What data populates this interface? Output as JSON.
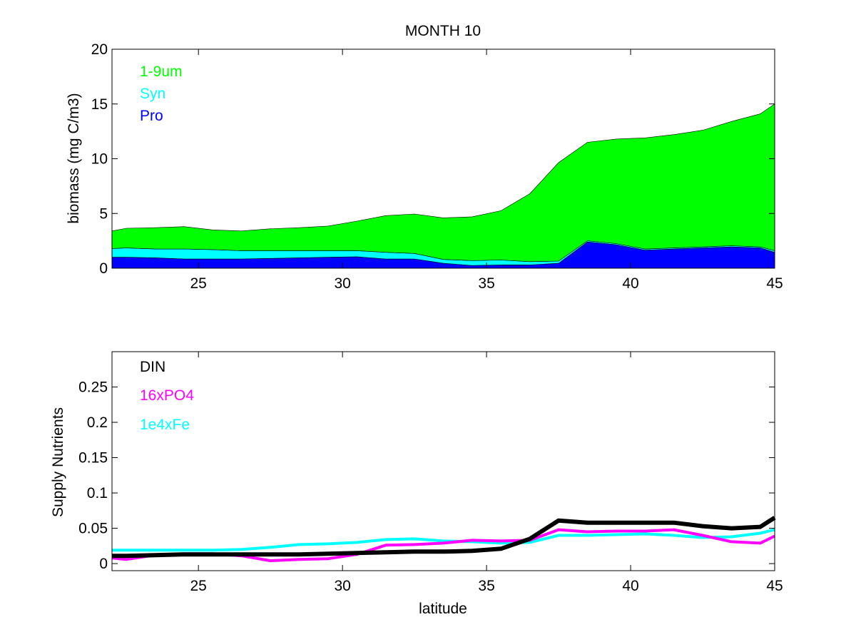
{
  "chart_data": [
    {
      "type": "area",
      "title": "MONTH 10",
      "xlabel": "",
      "ylabel": "biomass (mg C/m3)",
      "xlim": [
        22,
        45
      ],
      "ylim": [
        0,
        20
      ],
      "xticks": [
        25,
        30,
        35,
        40,
        45
      ],
      "yticks": [
        0,
        5,
        10,
        15,
        20
      ],
      "stacked": true,
      "legend_placement": "top-left",
      "x": [
        22,
        22.5,
        23.5,
        24.5,
        25.5,
        26.5,
        27.5,
        28.5,
        29.5,
        30.5,
        31.5,
        32.5,
        33.5,
        34.5,
        35.5,
        36.5,
        37.5,
        38.5,
        39.5,
        40.5,
        41.5,
        42.5,
        43.5,
        44.5,
        45
      ],
      "series": [
        {
          "name": "Pro",
          "color": "#0000ff",
          "values": [
            1.0,
            1.0,
            0.95,
            0.85,
            0.85,
            0.85,
            0.9,
            0.95,
            1.0,
            1.05,
            0.85,
            0.85,
            0.45,
            0.25,
            0.3,
            0.3,
            0.45,
            2.4,
            2.15,
            1.65,
            1.75,
            1.85,
            1.95,
            1.85,
            1.45
          ]
        },
        {
          "name": "Syn",
          "color": "#00ffff",
          "values": [
            0.8,
            0.85,
            0.8,
            0.9,
            0.85,
            0.75,
            0.7,
            0.65,
            0.6,
            0.55,
            0.6,
            0.5,
            0.35,
            0.45,
            0.45,
            0.3,
            0.2,
            0.1,
            0.1,
            0.1,
            0.1,
            0.1,
            0.1,
            0.1,
            0.15
          ]
        },
        {
          "name": "1-9um",
          "color": "#00ff00",
          "values": [
            1.6,
            1.8,
            1.95,
            2.05,
            1.8,
            1.8,
            2.0,
            2.1,
            2.25,
            2.7,
            3.35,
            3.6,
            3.8,
            4.0,
            4.5,
            6.2,
            9.0,
            9.0,
            9.55,
            10.15,
            10.35,
            10.65,
            11.35,
            12.15,
            13.4
          ]
        }
      ]
    },
    {
      "type": "line",
      "title": "",
      "xlabel": "latitude",
      "ylabel": "Supply Nutrients",
      "xlim": [
        22,
        45
      ],
      "ylim": [
        -0.01,
        0.3
      ],
      "xticks": [
        25,
        30,
        35,
        40,
        45
      ],
      "yticks": [
        0,
        0.05,
        0.1,
        0.15,
        0.2,
        0.25
      ],
      "ytick_labels": [
        "0",
        "0.05",
        "0.1",
        "0.15",
        "0.2",
        "0.25"
      ],
      "legend_placement": "top-left",
      "x": [
        22,
        22.5,
        23.5,
        24.5,
        25.5,
        26.5,
        27.5,
        28.5,
        29.5,
        30.5,
        31.5,
        32.5,
        33.5,
        34.5,
        35.5,
        36.5,
        37.5,
        38.5,
        39.5,
        40.5,
        41.5,
        42.5,
        43.5,
        44.5,
        45
      ],
      "series": [
        {
          "name": "DIN",
          "color": "#000000",
          "values": [
            0.011,
            0.011,
            0.012,
            0.013,
            0.013,
            0.013,
            0.013,
            0.013,
            0.014,
            0.015,
            0.016,
            0.017,
            0.017,
            0.018,
            0.021,
            0.035,
            0.061,
            0.058,
            0.058,
            0.058,
            0.058,
            0.053,
            0.05,
            0.052,
            0.065
          ]
        },
        {
          "name": "16xPO4",
          "color": "#ff00ff",
          "values": [
            0.008,
            0.006,
            0.012,
            0.014,
            0.014,
            0.011,
            0.004,
            0.006,
            0.007,
            0.013,
            0.026,
            0.027,
            0.029,
            0.033,
            0.032,
            0.033,
            0.048,
            0.045,
            0.046,
            0.046,
            0.048,
            0.04,
            0.031,
            0.029,
            0.039
          ]
        },
        {
          "name": "1e4xFe",
          "color": "#00ffff",
          "values": [
            0.019,
            0.019,
            0.019,
            0.019,
            0.019,
            0.02,
            0.023,
            0.027,
            0.028,
            0.03,
            0.034,
            0.035,
            0.032,
            0.031,
            0.029,
            0.03,
            0.04,
            0.04,
            0.041,
            0.042,
            0.04,
            0.037,
            0.038,
            0.043,
            0.048
          ]
        }
      ]
    }
  ]
}
